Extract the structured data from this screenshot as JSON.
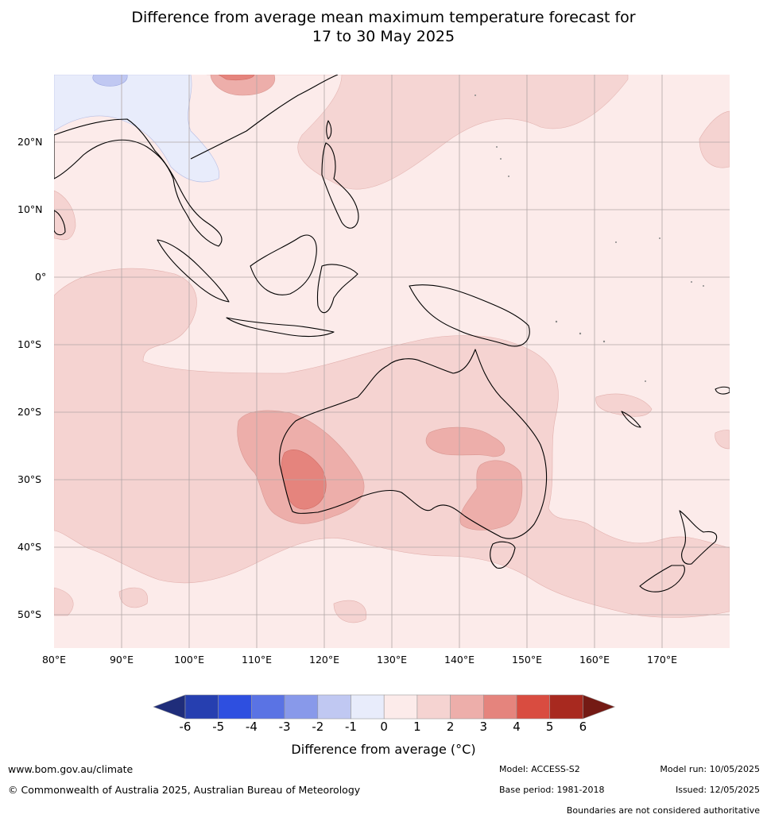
{
  "title": {
    "line1": "Difference from average mean maximum temperature forecast for",
    "line2": "17 to 30 May 2025"
  },
  "map": {
    "lat_labels": [
      "20°N",
      "10°N",
      "0°",
      "10°S",
      "20°S",
      "30°S",
      "40°S",
      "50°S"
    ],
    "lon_labels": [
      "80°E",
      "90°E",
      "100°E",
      "110°E",
      "120°E",
      "130°E",
      "140°E",
      "150°E",
      "160°E",
      "170°E"
    ],
    "extent": {
      "lon_min": 80,
      "lon_max": 180,
      "lat_min": -55,
      "lat_max": 30
    }
  },
  "legend": {
    "label": "Difference from average (°C)",
    "ticks": [
      "-6",
      "-5",
      "-4",
      "-3",
      "-2",
      "-1",
      "0",
      "1",
      "2",
      "3",
      "4",
      "5",
      "6"
    ],
    "colors": [
      "#1f2d7a",
      "#263fb0",
      "#2e4fe0",
      "#5a73e4",
      "#8899ea",
      "#c0c8f2",
      "#e8ecfb",
      "#fcebea",
      "#f5d3d1",
      "#edaeaa",
      "#e5847d",
      "#d94c40",
      "#a8291f",
      "#741a14"
    ]
  },
  "footer": {
    "website": "www.bom.gov.au/climate",
    "copyright": "© Commonwealth of Australia 2025, Australian Bureau of Meteorology",
    "model": "Model: ACCESS-S2",
    "base_period": "Base period: 1981-2018",
    "model_run": "Model run: 10/05/2025",
    "issued": "Issued: 12/05/2025",
    "disclaimer": "Boundaries are not considered authoritative"
  }
}
